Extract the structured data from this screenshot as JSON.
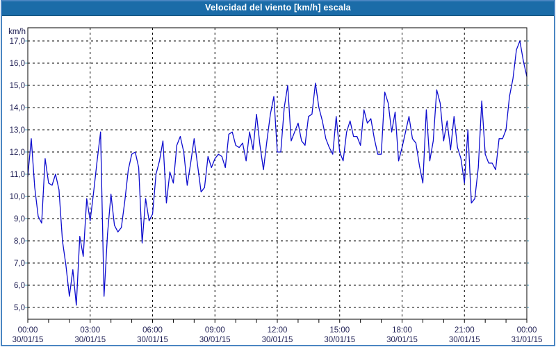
{
  "window": {
    "title": "Velocidad del viento [km/h] escala"
  },
  "colors": {
    "titlebar_bg": "#1b6ca8",
    "titlebar_edge": "#14547f",
    "title_text": "#ffffff",
    "frame_border": "#4a86c2",
    "plot_bg": "#ffffff",
    "plot_border": "#000000",
    "grid": "#000000",
    "line": "#0d0cce",
    "label_text": "#1d1d52",
    "left_tick": "#4a9fc0",
    "bottom_tick": "#000000"
  },
  "chart_data": {
    "type": "line",
    "title": "Velocidad del viento [km/h] escala",
    "ylabel_unit": "km/h",
    "ylim": [
      5.0,
      17.0
    ],
    "ytick_step": 1.0,
    "ytick_labels_top_to_bottom": [
      "17,0",
      "16,0",
      "15,0",
      "14,0",
      "13,0",
      "12,0",
      "11,0",
      "10,0",
      "9,0",
      "8,0",
      "7,0",
      "6,0",
      "5,0"
    ],
    "grid_style": "dashed",
    "legend": "none",
    "x_axis": {
      "total_hours": 24,
      "major_tick_interval_hours": 3,
      "minor_tick_interval_hours": 1,
      "start": "30/01/15 00:00",
      "end": "31/01/15 00:00"
    },
    "xticks": [
      {
        "time": "00:00",
        "date": "30/01/15"
      },
      {
        "time": "03:00",
        "date": "30/01/15"
      },
      {
        "time": "06:00",
        "date": "30/01/15"
      },
      {
        "time": "09:00",
        "date": "30/01/15"
      },
      {
        "time": "12:00",
        "date": "30/01/15"
      },
      {
        "time": "15:00",
        "date": "30/01/15"
      },
      {
        "time": "18:00",
        "date": "30/01/15"
      },
      {
        "time": "21:00",
        "date": "30/01/15"
      },
      {
        "time": "00:00",
        "date": "31/01/15"
      }
    ],
    "series": [
      {
        "name": "Velocidad del viento [km/h]",
        "start_time": "00:00",
        "sample_interval_minutes": 10,
        "values": [
          10.9,
          12.6,
          10.4,
          9.1,
          8.8,
          11.7,
          10.6,
          10.5,
          11.0,
          10.3,
          8.0,
          6.9,
          5.5,
          6.7,
          5.1,
          8.2,
          7.3,
          9.9,
          8.9,
          10.2,
          11.6,
          12.9,
          5.5,
          8.3,
          10.1,
          8.7,
          8.4,
          8.6,
          9.8,
          11.2,
          11.9,
          12.0,
          11.3,
          7.9,
          9.9,
          8.9,
          9.2,
          11.0,
          11.6,
          12.5,
          9.7,
          11.1,
          10.6,
          12.3,
          12.7,
          12.0,
          10.5,
          11.5,
          12.6,
          11.4,
          10.2,
          10.4,
          11.8,
          11.3,
          11.7,
          11.9,
          11.8,
          11.3,
          12.8,
          12.9,
          12.3,
          12.2,
          12.4,
          11.6,
          12.9,
          12.1,
          13.7,
          12.3,
          11.2,
          12.5,
          13.7,
          14.5,
          12.0,
          12.0,
          14.0,
          15.0,
          12.5,
          12.9,
          13.3,
          12.5,
          12.3,
          13.6,
          13.7,
          15.1,
          14.0,
          13.4,
          12.6,
          12.2,
          11.9,
          13.6,
          12.0,
          11.6,
          12.9,
          13.4,
          12.7,
          12.7,
          12.3,
          13.9,
          13.3,
          13.5,
          12.6,
          11.9,
          11.9,
          14.7,
          14.2,
          12.9,
          13.8,
          11.6,
          12.2,
          12.9,
          13.6,
          12.6,
          12.4,
          11.4,
          10.6,
          13.9,
          11.6,
          12.5,
          14.8,
          14.2,
          12.5,
          13.4,
          12.1,
          13.6,
          12.2,
          11.7,
          10.6,
          13.0,
          9.7,
          9.9,
          11.3,
          14.3,
          11.9,
          11.5,
          11.5,
          11.2,
          12.6,
          12.6,
          13.0,
          14.5,
          15.3,
          16.6,
          17.0,
          16.1,
          15.4
        ]
      }
    ]
  }
}
